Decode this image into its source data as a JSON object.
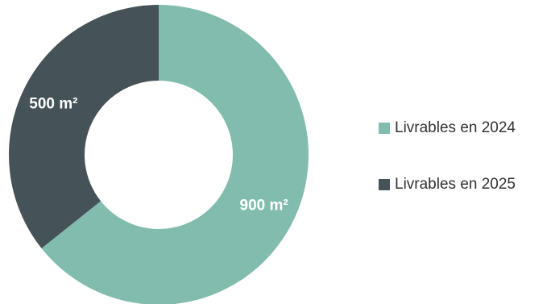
{
  "chart_data": {
    "type": "pie",
    "variant": "donut",
    "title": "",
    "categories": [
      "Livrables en 2024",
      "Livrables en 2025"
    ],
    "values": [
      900,
      500
    ],
    "unit": "m²",
    "data_labels": [
      "900 m²",
      "500 m²"
    ],
    "colors": [
      "#82bcae",
      "#455257"
    ],
    "legend": {
      "placement": "right",
      "entries": [
        "Livrables en 2024",
        "Livrables en 2025"
      ]
    }
  }
}
